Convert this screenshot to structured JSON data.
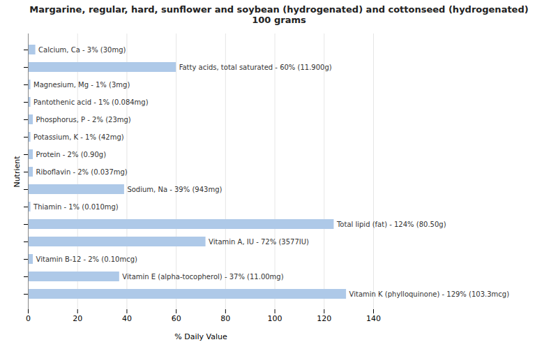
{
  "chart_data": {
    "type": "bar",
    "orientation": "horizontal",
    "title": "Margarine, regular, hard, sunflower and soybean (hydrogenated) and cottonseed (hydrogenated)\n100 grams",
    "xlabel": "% Daily Value",
    "ylabel": "Nutrient",
    "categories": [
      "Calcium, Ca - 3% (30mg)",
      "Fatty acids, total saturated - 60% (11.900g)",
      "Magnesium, Mg - 1% (3mg)",
      "Pantothenic acid - 1% (0.084mg)",
      "Phosphorus, P - 2% (23mg)",
      "Potassium, K - 1% (42mg)",
      "Protein - 2% (0.90g)",
      "Riboflavin - 2% (0.037mg)",
      "Sodium, Na - 39% (943mg)",
      "Thiamin - 1% (0.010mg)",
      "Total lipid (fat) - 124% (80.50g)",
      "Vitamin A, IU - 72% (3577IU)",
      "Vitamin B-12 - 2% (0.10mcg)",
      "Vitamin E (alpha-tocopherol) - 37% (11.00mg)",
      "Vitamin K (phylloquinone) - 129% (103.3mcg)"
    ],
    "values": [
      3,
      60,
      1,
      1,
      2,
      1,
      2,
      2,
      39,
      1,
      124,
      72,
      2,
      37,
      129
    ],
    "color": "#aec9e8",
    "xlim": [
      0,
      140
    ],
    "xticks": [
      0,
      20,
      40,
      60,
      80,
      100,
      120,
      140
    ],
    "grid": true,
    "tick_labels": "x"
  }
}
